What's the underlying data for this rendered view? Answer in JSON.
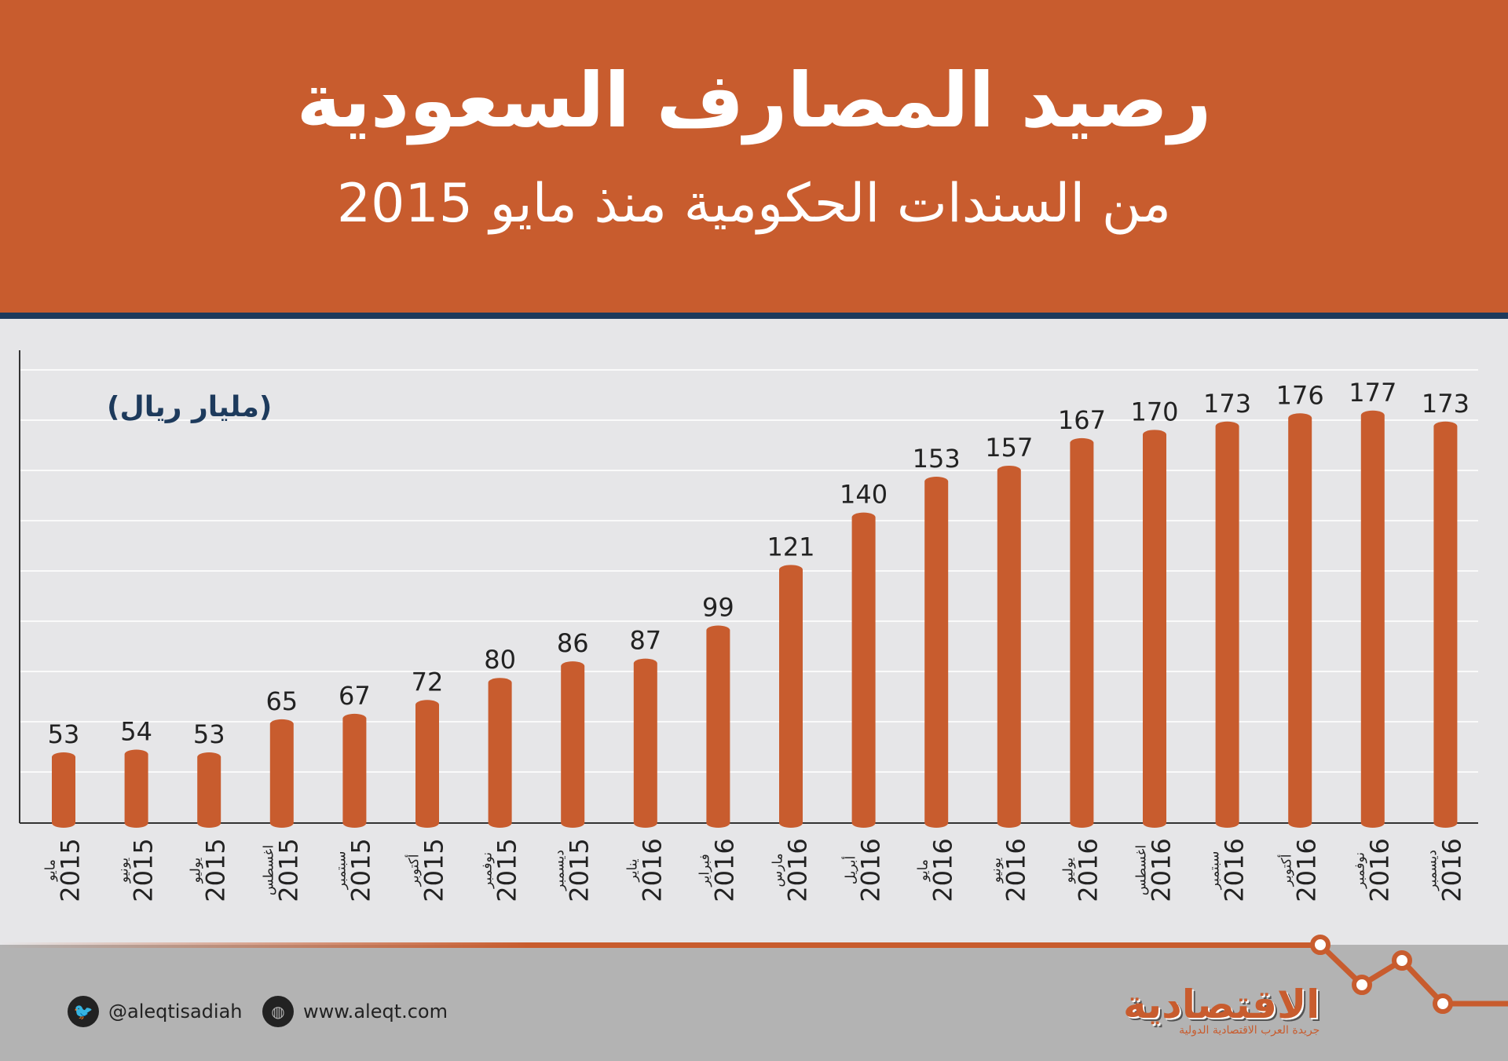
{
  "header": {
    "title": "رصيد المصارف السعودية",
    "subtitle": "من السندات الحكومية منذ مايو 2015"
  },
  "colors": {
    "accent": "#c85c2e",
    "navy": "#1d3a5c",
    "background": "#e6e6e8",
    "footer": "#b3b3b3"
  },
  "chart_data": {
    "type": "bar",
    "unit_label": "(مليار ريال)",
    "categories": [
      {
        "month": "مايو",
        "year": "2015"
      },
      {
        "month": "يونيو",
        "year": "2015"
      },
      {
        "month": "يوليو",
        "year": "2015"
      },
      {
        "month": "اغسطس",
        "year": "2015"
      },
      {
        "month": "سبتمبر",
        "year": "2015"
      },
      {
        "month": "أكتوبر",
        "year": "2015"
      },
      {
        "month": "نوفمبر",
        "year": "2015"
      },
      {
        "month": "ديسمبر",
        "year": "2015"
      },
      {
        "month": "يناير",
        "year": "2016"
      },
      {
        "month": "فبراير",
        "year": "2016"
      },
      {
        "month": "مارس",
        "year": "2016"
      },
      {
        "month": "أبريل",
        "year": "2016"
      },
      {
        "month": "مايو",
        "year": "2016"
      },
      {
        "month": "يونيو",
        "year": "2016"
      },
      {
        "month": "يوليو",
        "year": "2016"
      },
      {
        "month": "اغسطس",
        "year": "2016"
      },
      {
        "month": "سبتمبر",
        "year": "2016"
      },
      {
        "month": "أكتوبر",
        "year": "2016"
      },
      {
        "month": "نوفمبر",
        "year": "2016"
      },
      {
        "month": "ديسمبر",
        "year": "2016"
      }
    ],
    "values": [
      53,
      54,
      53,
      65,
      67,
      72,
      80,
      86,
      87,
      99,
      121,
      140,
      153,
      157,
      167,
      170,
      173,
      176,
      177,
      173
    ],
    "data_labels": true,
    "grid": true,
    "bar_color": "#c85c2e"
  },
  "footer": {
    "twitter": "@aleqtisadiah",
    "website": "www.aleqt.com",
    "twitter_icon": "twitter-bird",
    "web_icon": "globe",
    "logo_name": "الاقتصادية",
    "logo_tagline": "جريدة العرب الاقتصادية الدولية"
  }
}
